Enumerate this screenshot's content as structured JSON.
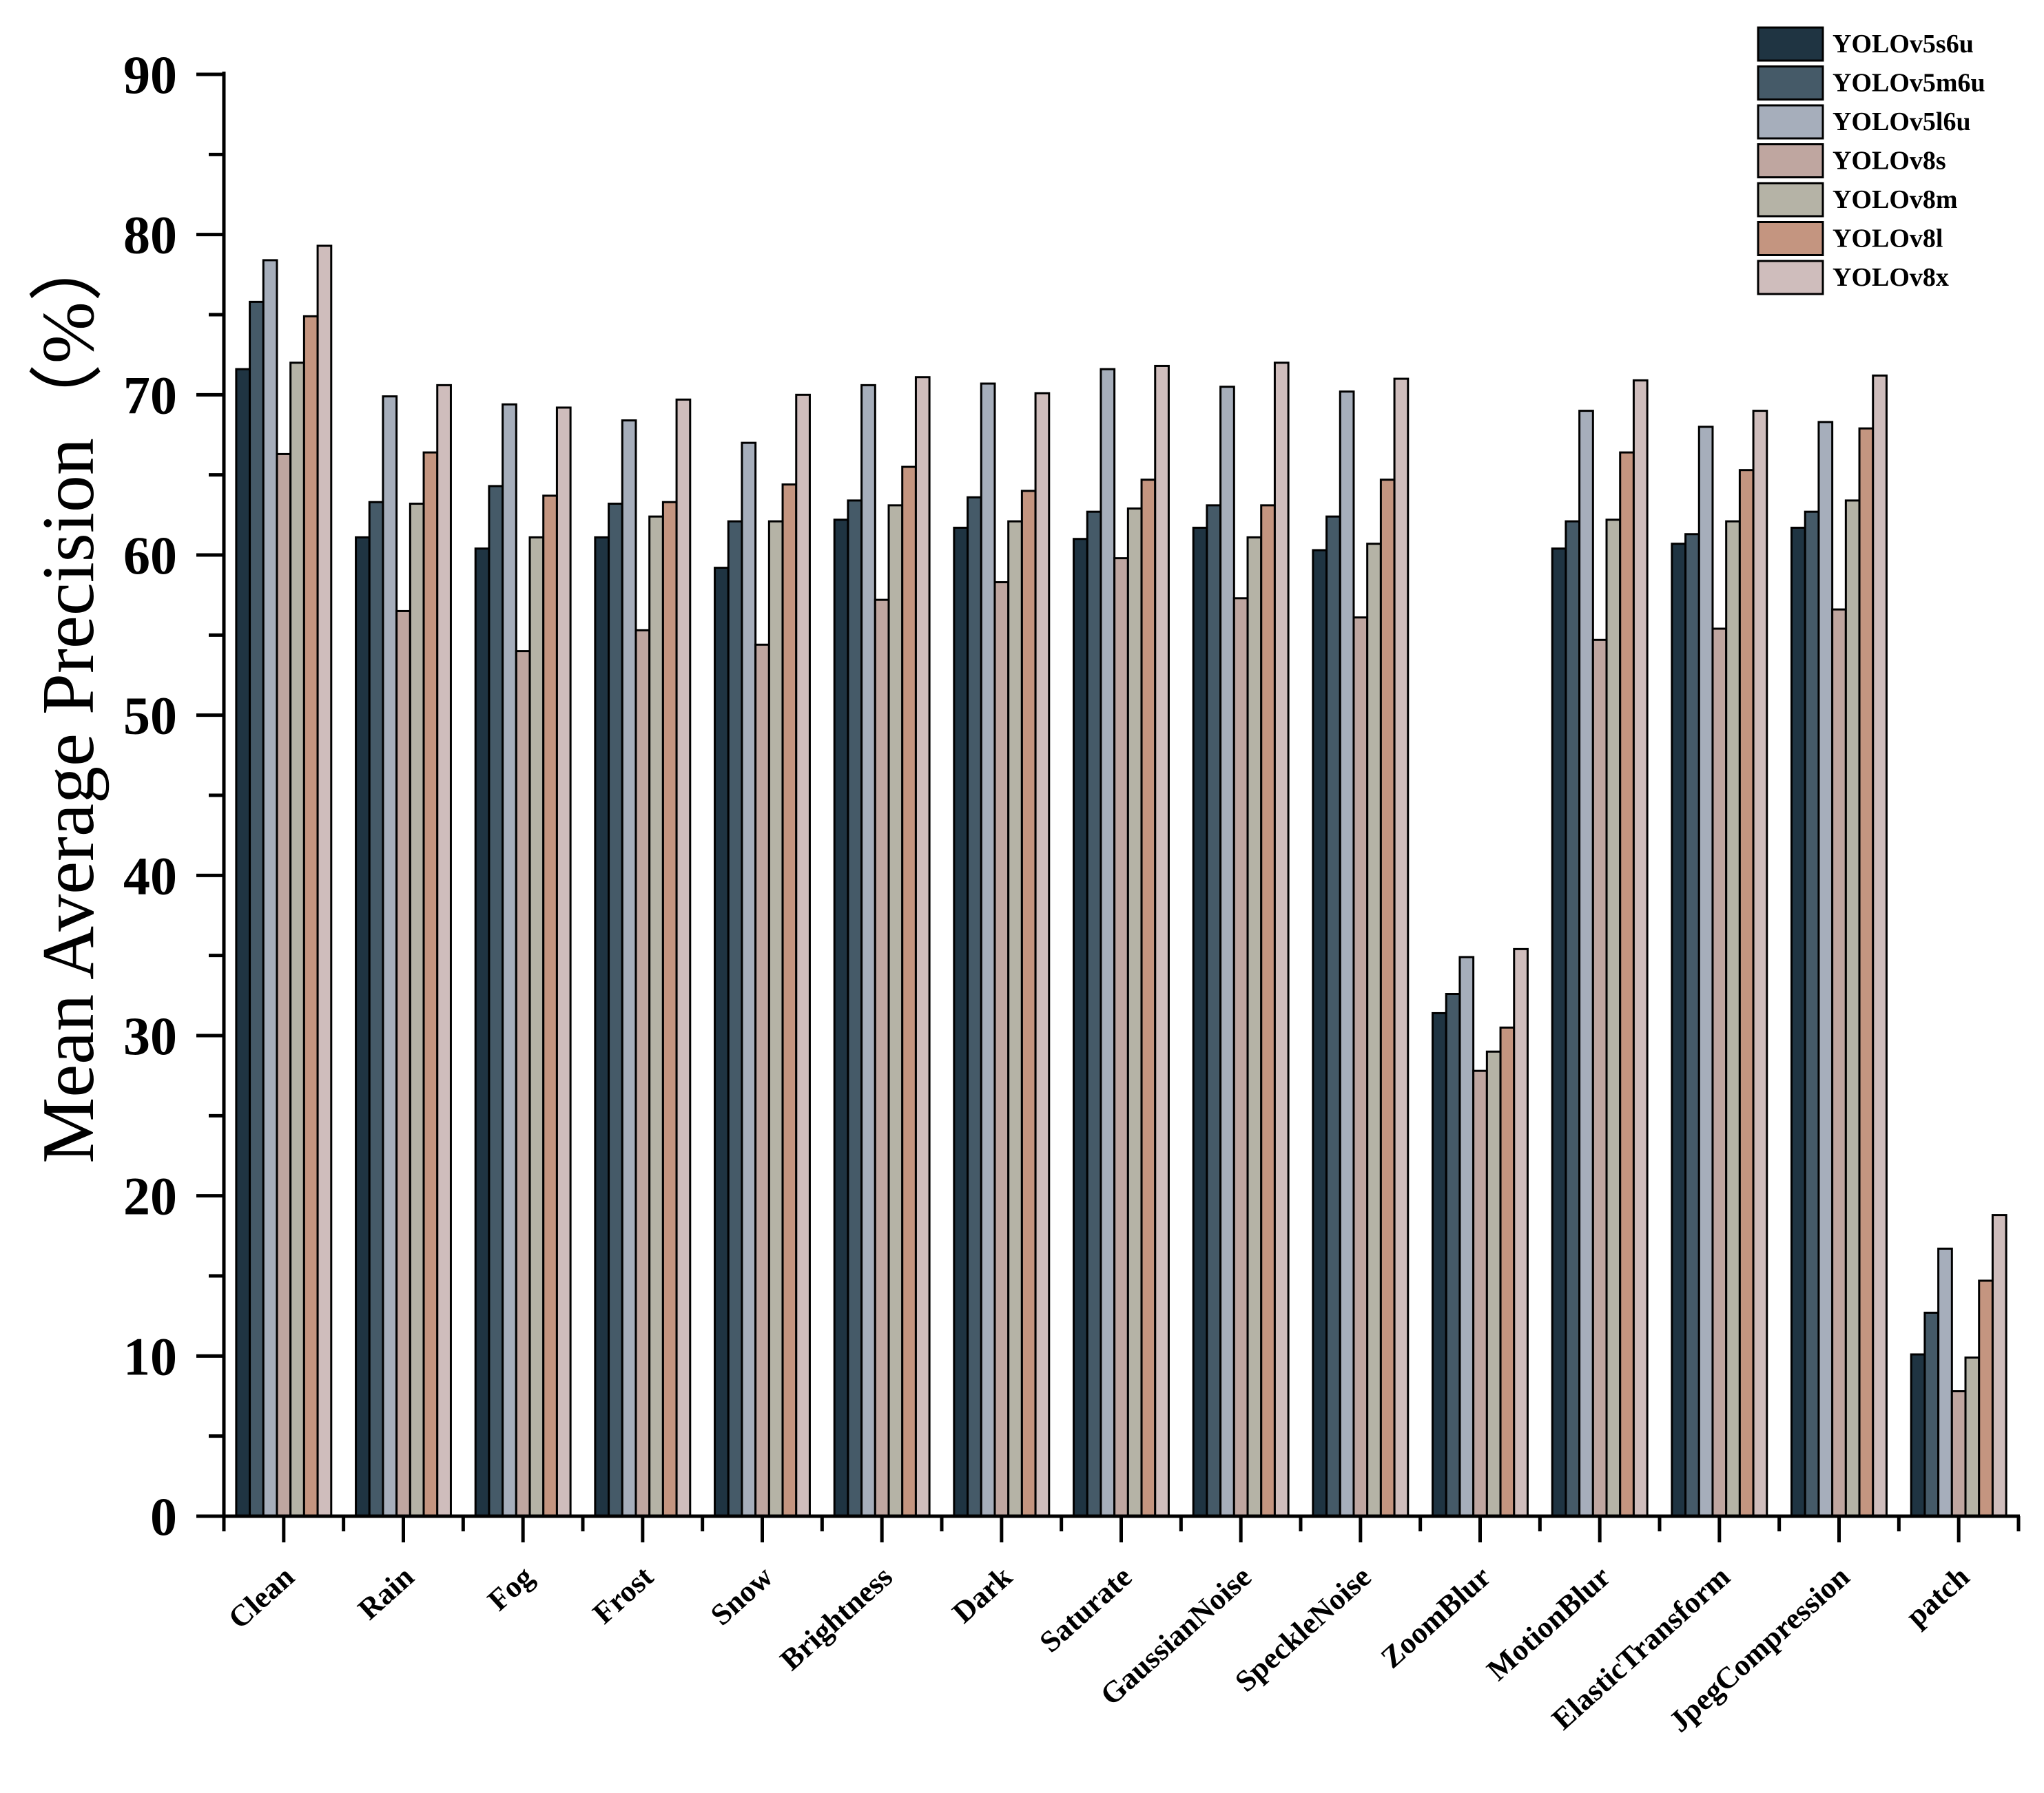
{
  "chart_data": {
    "type": "bar",
    "title": "",
    "xlabel": "",
    "ylabel": "Mean Average Precision（%）",
    "ylim": [
      0,
      90
    ],
    "yticks": [
      "0",
      "10",
      "20",
      "30",
      "40",
      "50",
      "60",
      "70",
      "80",
      "90"
    ],
    "legend_position": "top-right",
    "categories": [
      "Clean",
      "Rain",
      "Fog",
      "Frost",
      "Snow",
      "Brightness",
      "Dark",
      "Saturate",
      "GaussianNoise",
      "SpeckleNoise",
      "ZoomBlur",
      "MotionBlur",
      "ElasticTransform",
      "JpegCompression",
      "patch"
    ],
    "series": [
      {
        "name": "YOLOv5s6u",
        "color": "#1f3442",
        "values": [
          71.6,
          61.1,
          60.4,
          61.1,
          59.2,
          62.2,
          61.7,
          61.0,
          61.7,
          60.3,
          31.4,
          60.4,
          60.7,
          61.7,
          10.1
        ]
      },
      {
        "name": "YOLOv5m6u",
        "color": "#455a68",
        "values": [
          75.8,
          63.3,
          64.3,
          63.2,
          62.1,
          63.4,
          63.6,
          62.7,
          63.1,
          62.4,
          32.6,
          62.1,
          61.3,
          62.7,
          12.7
        ]
      },
      {
        "name": "YOLOv5l6u",
        "color": "#a6aebb",
        "values": [
          78.4,
          69.9,
          69.4,
          68.4,
          67.0,
          70.6,
          70.7,
          71.6,
          70.5,
          70.2,
          34.9,
          69.0,
          68.0,
          68.3,
          16.7
        ]
      },
      {
        "name": "YOLOv8s",
        "color": "#bfa6a0",
        "values": [
          66.3,
          56.5,
          54.0,
          55.3,
          54.4,
          57.2,
          58.3,
          59.8,
          57.3,
          56.1,
          27.8,
          54.7,
          55.4,
          56.6,
          7.8
        ]
      },
      {
        "name": "YOLOv8m",
        "color": "#b5b3a6",
        "values": [
          72.0,
          63.2,
          61.1,
          62.4,
          62.1,
          63.1,
          62.1,
          62.9,
          61.1,
          60.7,
          29.0,
          62.2,
          62.1,
          63.4,
          9.9
        ]
      },
      {
        "name": "YOLOv8l",
        "color": "#c49580",
        "values": [
          74.9,
          66.4,
          63.7,
          63.3,
          64.4,
          65.5,
          64.0,
          64.7,
          63.1,
          64.7,
          30.5,
          66.4,
          65.3,
          67.9,
          14.7
        ]
      },
      {
        "name": "YOLOv8x",
        "color": "#cfbdbc",
        "values": [
          79.3,
          70.6,
          69.2,
          69.7,
          70.0,
          71.1,
          70.1,
          71.8,
          72.0,
          71.0,
          35.4,
          70.9,
          69.0,
          71.2,
          18.8
        ]
      }
    ]
  }
}
